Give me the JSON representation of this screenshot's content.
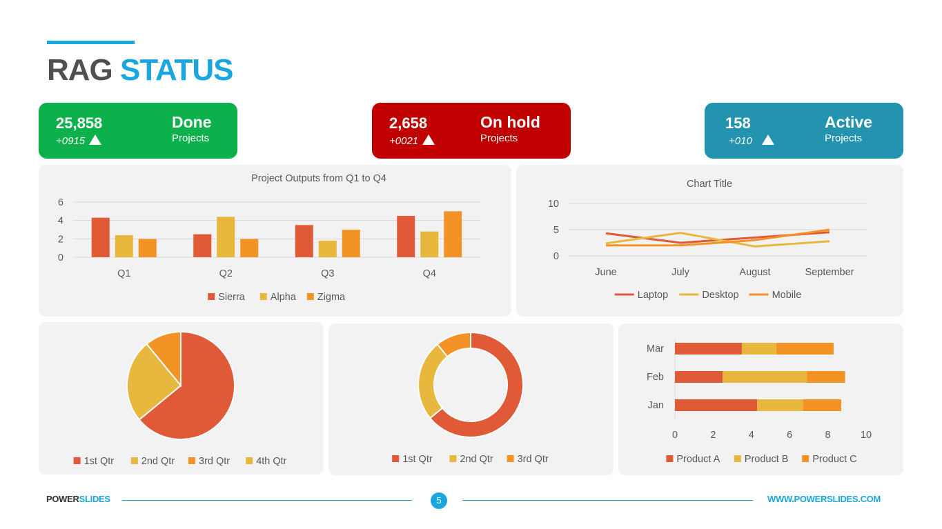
{
  "header": {
    "title_part1": "RAG",
    "title_part2": "STATUS"
  },
  "kpis": [
    {
      "value": "25,858",
      "delta": "+0915",
      "label": "Done",
      "sub": "Projects",
      "color": "#0db14b"
    },
    {
      "value": "2,658",
      "delta": "+0021",
      "label": "On hold",
      "sub": "Projects",
      "color": "#c00000"
    },
    {
      "value": "158",
      "delta": "+010",
      "label": "Active",
      "sub": "Projects",
      "color": "#2493b0"
    }
  ],
  "chart_data": [
    {
      "type": "bar",
      "title": "Project Outputs from Q1 to Q4",
      "categories": [
        "Q1",
        "Q2",
        "Q3",
        "Q4"
      ],
      "series": [
        {
          "name": "Sierra",
          "values": [
            4.3,
            2.5,
            3.5,
            4.5
          ],
          "color": "#e05a37"
        },
        {
          "name": "Alpha",
          "values": [
            2.4,
            4.4,
            1.8,
            2.8
          ],
          "color": "#e8b83e"
        },
        {
          "name": "Zigma",
          "values": [
            2.0,
            2.0,
            3.0,
            5.0
          ],
          "color": "#f39325"
        }
      ],
      "ylim": [
        0,
        6
      ],
      "yticks": [
        "0",
        "2",
        "4",
        "6"
      ],
      "grid": true,
      "legend": "bottom"
    },
    {
      "type": "line",
      "title": "Chart Title",
      "categories": [
        "June",
        "July",
        "August",
        "September"
      ],
      "series": [
        {
          "name": "Laptop",
          "values": [
            4.3,
            2.5,
            3.5,
            4.5
          ],
          "color": "#e05a37"
        },
        {
          "name": "Desktop",
          "values": [
            2.4,
            4.4,
            1.8,
            2.8
          ],
          "color": "#e8b83e"
        },
        {
          "name": "Mobile",
          "values": [
            2.0,
            2.0,
            3.0,
            5.0
          ],
          "color": "#f39325"
        }
      ],
      "ylim": [
        0,
        10
      ],
      "yticks": [
        "0",
        "5",
        "10"
      ],
      "grid": true,
      "legend": "bottom"
    },
    {
      "type": "pie",
      "labels": [
        "1st Qtr",
        "2nd Qtr",
        "3rd Qtr",
        "4th Qtr"
      ],
      "values": [
        8.2,
        3.2,
        1.4,
        0
      ],
      "colors": [
        "#e05a37",
        "#e8b83e",
        "#f39325",
        "#e8b83e"
      ],
      "legend": "bottom"
    },
    {
      "type": "pie",
      "donut": true,
      "labels": [
        "1st Qtr",
        "2nd Qtr",
        "3rd Qtr"
      ],
      "values": [
        8.2,
        3.2,
        1.4
      ],
      "colors": [
        "#e05a37",
        "#e8b83e",
        "#f39325"
      ],
      "legend": "bottom"
    },
    {
      "type": "bar",
      "orientation": "horizontal",
      "stacked": true,
      "categories": [
        "Jan",
        "Feb",
        "Mar"
      ],
      "series": [
        {
          "name": "Product A",
          "values": [
            4.3,
            2.5,
            3.5
          ],
          "color": "#e05a37"
        },
        {
          "name": "Product B",
          "values": [
            2.4,
            4.4,
            1.8
          ],
          "color": "#e8b83e"
        },
        {
          "name": "Product C",
          "values": [
            2.0,
            2.0,
            3.0
          ],
          "color": "#f39325"
        }
      ],
      "xlim": [
        0,
        10
      ],
      "xticks": [
        "0",
        "2",
        "4",
        "6",
        "8",
        "10"
      ],
      "legend": "bottom"
    }
  ],
  "footer": {
    "brand_part1": "POWER",
    "brand_part2": "SLIDES",
    "page": "5",
    "url": "WWW.POWERSLIDES.COM",
    "line_color": "#1aa7e0"
  }
}
